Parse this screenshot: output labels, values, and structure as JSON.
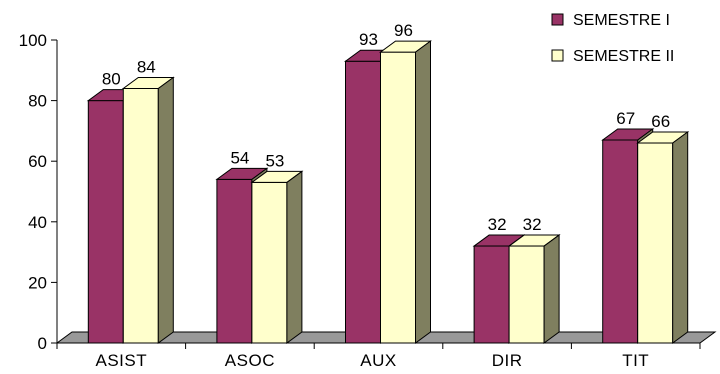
{
  "chart_data": {
    "type": "bar",
    "style": "3d-clustered-column",
    "categories": [
      "ASIST",
      "ASOC",
      "AUX",
      "DIR",
      "TIT"
    ],
    "series": [
      {
        "name": "SEMESTRE I",
        "values": [
          80,
          54,
          93,
          32,
          67
        ],
        "color": "#993366"
      },
      {
        "name": "SEMESTRE II",
        "values": [
          84,
          53,
          96,
          32,
          66
        ],
        "color": "#FFFFCC"
      }
    ],
    "yticks": [
      "0",
      "20",
      "40",
      "60",
      "80",
      "100"
    ],
    "ylim": [
      0,
      100
    ],
    "grid": false,
    "legend_position": "top-right",
    "floor_color": "#999999",
    "side_color": "#7F7F5F"
  }
}
